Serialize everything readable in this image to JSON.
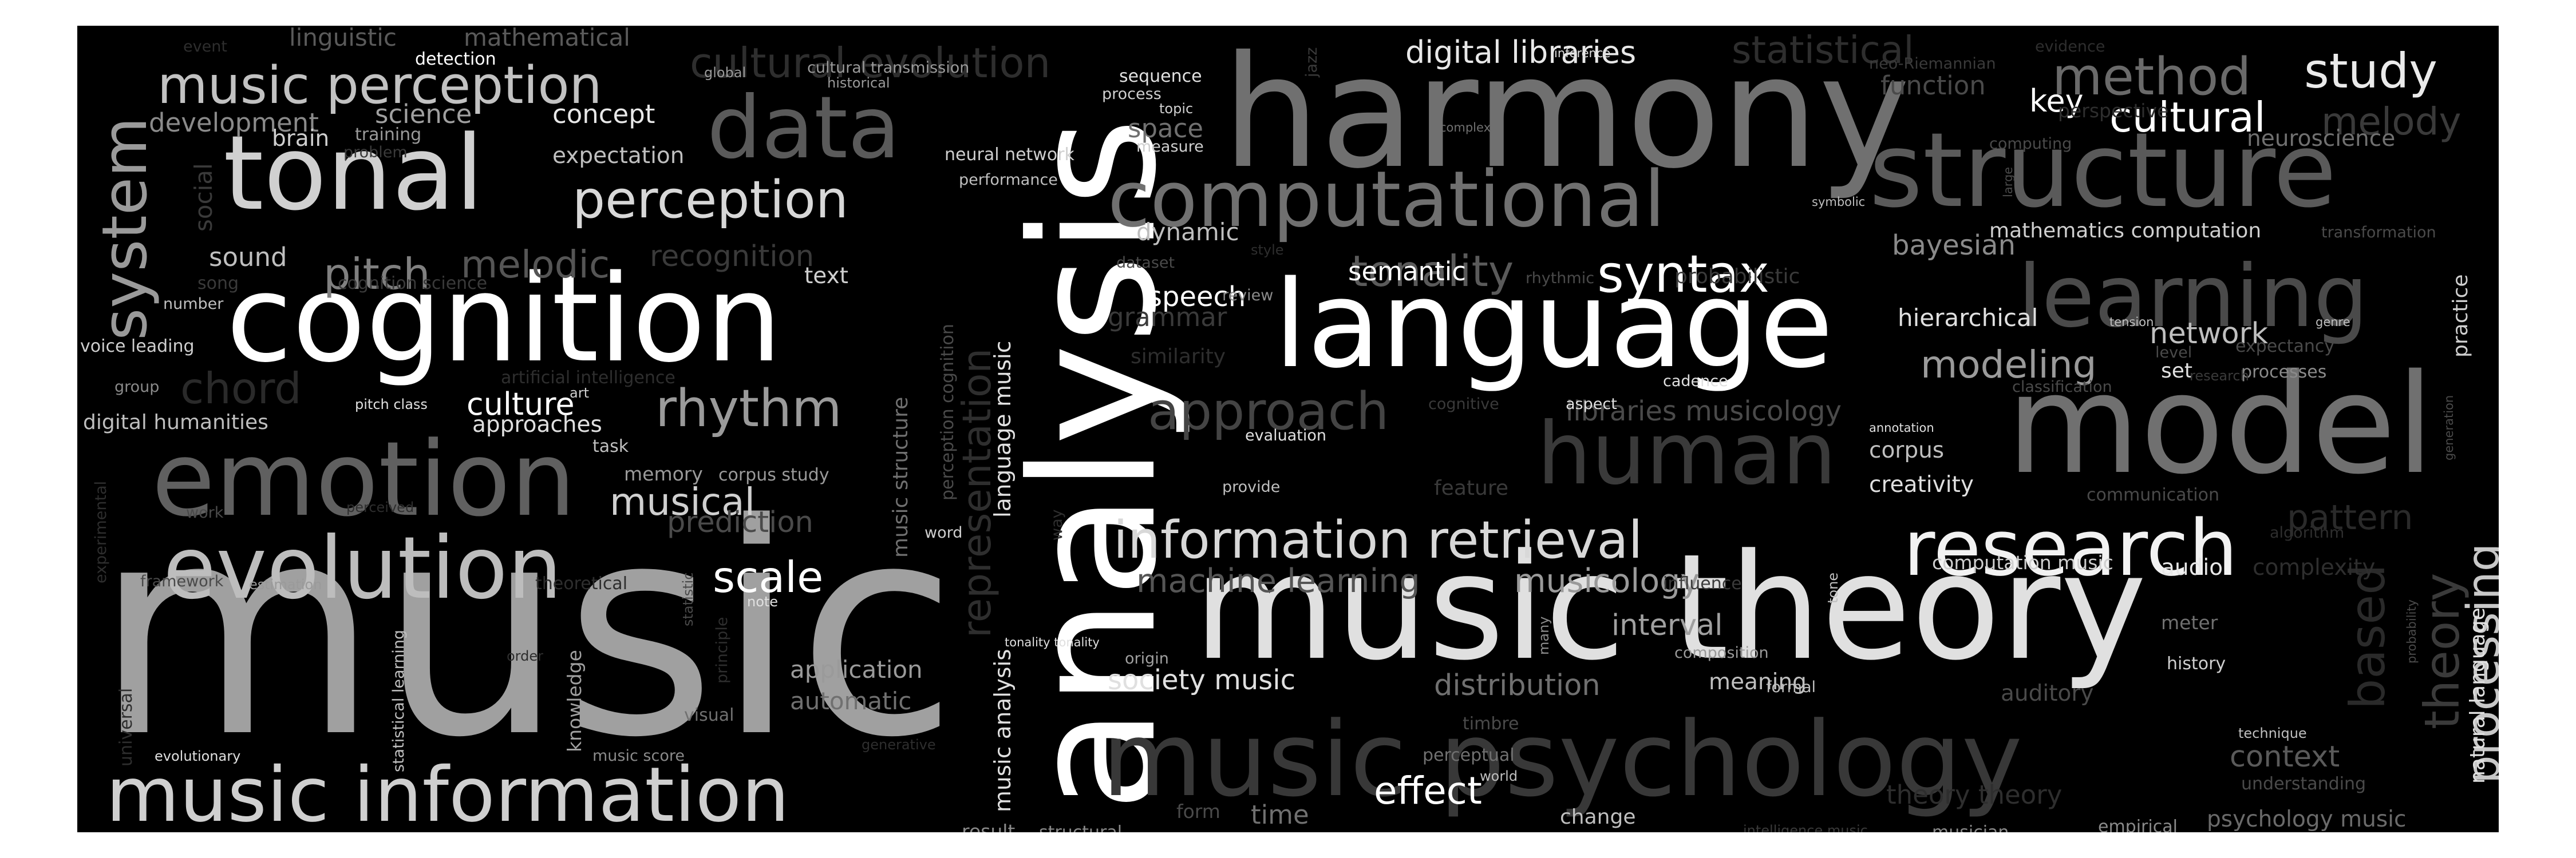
{
  "background": "#000000",
  "words": [
    {
      "text": "music",
      "color": "#a0a0a0"
    },
    {
      "text": "analysis",
      "color": "#ffffff"
    },
    {
      "text": "harmony",
      "color": "#707070"
    },
    {
      "text": "music theory",
      "color": "#e0e0e0"
    },
    {
      "text": "language",
      "color": "#ffffff"
    },
    {
      "text": "model",
      "color": "#707070"
    },
    {
      "text": "cognition",
      "color": "#ffffff"
    },
    {
      "text": "structure",
      "color": "#5a5a5a"
    },
    {
      "text": "music psychology",
      "color": "#383838"
    },
    {
      "text": "tonal",
      "color": "#d0d0d0"
    },
    {
      "text": "emotion",
      "color": "#606060"
    },
    {
      "text": "data",
      "color": "#5a5a5a"
    },
    {
      "text": "evolution",
      "color": "#bdbdbd"
    },
    {
      "text": "computational",
      "color": "#707070"
    },
    {
      "text": "learning",
      "color": "#4a4a4a"
    },
    {
      "text": "music information",
      "color": "#cfcfcf"
    },
    {
      "text": "human",
      "color": "#3a3a3a"
    },
    {
      "text": "research",
      "color": "#f2f2f2"
    },
    {
      "text": "system",
      "color": "#9a9a9a"
    },
    {
      "text": "information retrieval",
      "color": "#d8d8d8"
    },
    {
      "text": "music perception",
      "color": "#c2c2c2"
    },
    {
      "text": "perception",
      "color": "#d8d8d8"
    },
    {
      "text": "rhythm",
      "color": "#9a9a9a"
    },
    {
      "text": "approach",
      "color": "#444444"
    },
    {
      "text": "syntax",
      "color": "#ffffff"
    },
    {
      "text": "tonality",
      "color": "#5a5a5a"
    },
    {
      "text": "pitch",
      "color": "#808080"
    },
    {
      "text": "melodic",
      "color": "#555555"
    },
    {
      "text": "method",
      "color": "#6a6a6a"
    },
    {
      "text": "study",
      "color": "#eaeaea"
    },
    {
      "text": "cultural",
      "color": "#ffffff"
    },
    {
      "text": "melody",
      "color": "#3a3a3a"
    },
    {
      "text": "digital libraries",
      "color": "#e8e8e8"
    },
    {
      "text": "cultural evolution",
      "color": "#2e2e2e"
    },
    {
      "text": "statistical",
      "color": "#2e2e2e"
    },
    {
      "text": "scale",
      "color": "#ffffff"
    },
    {
      "text": "musical",
      "color": "#cfcfcf"
    },
    {
      "text": "machine learning",
      "color": "#555555"
    },
    {
      "text": "musicology",
      "color": "#9a9a9a"
    },
    {
      "text": "modeling",
      "color": "#9a9a9a"
    },
    {
      "text": "processing",
      "color": "#c8c8c8"
    },
    {
      "text": "theory",
      "color": "#3a3a3a"
    },
    {
      "text": "based",
      "color": "#2a2a2a"
    },
    {
      "text": "representation",
      "color": "#2e2e2e"
    },
    {
      "text": "chord",
      "color": "#2a2a2a"
    },
    {
      "text": "culture",
      "color": "#ffffff"
    },
    {
      "text": "effect",
      "color": "#ffffff"
    },
    {
      "text": "interval",
      "color": "#a0a0a0"
    },
    {
      "text": "distribution",
      "color": "#707070"
    },
    {
      "text": "bayesian",
      "color": "#8a8a8a"
    },
    {
      "text": "recognition",
      "color": "#3a3a3a"
    },
    {
      "text": "speech",
      "color": "#ffffff"
    },
    {
      "text": "network",
      "color": "#bfbfbf"
    },
    {
      "text": "pattern",
      "color": "#2a2a2a"
    },
    {
      "text": "context",
      "color": "#5a5a5a"
    },
    {
      "text": "libraries musicology",
      "color": "#4a4a4a"
    },
    {
      "text": "prediction",
      "color": "#4a4a4a"
    },
    {
      "text": "application",
      "color": "#9a9a9a"
    },
    {
      "text": "automatic",
      "color": "#707070"
    },
    {
      "text": "society music",
      "color": "#e0e0e0"
    },
    {
      "text": "space",
      "color": "#707070"
    },
    {
      "text": "grammar",
      "color": "#3a3a3a"
    },
    {
      "text": "sound",
      "color": "#bfbfbf"
    },
    {
      "text": "development",
      "color": "#8a8a8a"
    },
    {
      "text": "science",
      "color": "#a0a0a0"
    },
    {
      "text": "concept",
      "color": "#e8e8e8"
    },
    {
      "text": "expectation",
      "color": "#bfbfbf"
    },
    {
      "text": "time",
      "color": "#707070"
    },
    {
      "text": "key",
      "color": "#ffffff"
    },
    {
      "text": "semantic",
      "color": "#ffffff"
    },
    {
      "text": "dynamic",
      "color": "#bfbfbf"
    },
    {
      "text": "hierarchical",
      "color": "#e0e0e0"
    },
    {
      "text": "creativity",
      "color": "#e0e0e0"
    },
    {
      "text": "corpus",
      "color": "#bfbfbf"
    },
    {
      "text": "meaning",
      "color": "#bfbfbf"
    },
    {
      "text": "auditory",
      "color": "#4a4a4a"
    },
    {
      "text": "psychology music",
      "color": "#6a6a6a"
    },
    {
      "text": "music analysis",
      "color": "#e0e0e0"
    },
    {
      "text": "language music",
      "color": "#e0e0e0"
    },
    {
      "text": "music structure",
      "color": "#707070"
    },
    {
      "text": "perception cognition",
      "color": "#4a4a4a"
    },
    {
      "text": "mathematics computation",
      "color": "#cfcfcf"
    },
    {
      "text": "computation music",
      "color": "#cfcfcf"
    },
    {
      "text": "audio",
      "color": "#e8e8e8"
    },
    {
      "text": "complexity",
      "color": "#2e2e2e"
    },
    {
      "text": "meter",
      "color": "#707070"
    },
    {
      "text": "history",
      "color": "#cfcfcf"
    },
    {
      "text": "function",
      "color": "#4a4a4a"
    },
    {
      "text": "neuroscience",
      "color": "#707070"
    },
    {
      "text": "set",
      "color": "#e0e0e0"
    },
    {
      "text": "processes",
      "color": "#8a8a8a"
    },
    {
      "text": "expectancy",
      "color": "#4a4a4a"
    },
    {
      "text": "practice",
      "color": "#cfcfcf"
    },
    {
      "text": "natural language",
      "color": "#e0e0e0"
    },
    {
      "text": "linguistic",
      "color": "#5a5a5a"
    },
    {
      "text": "mathematical",
      "color": "#5a5a5a"
    },
    {
      "text": "detection",
      "color": "#ffffff"
    },
    {
      "text": "brain",
      "color": "#cfcfcf"
    },
    {
      "text": "training",
      "color": "#9a9a9a"
    },
    {
      "text": "problem",
      "color": "#3a3a3a"
    },
    {
      "text": "social",
      "color": "#3a3a3a"
    },
    {
      "text": "song",
      "color": "#3a3a3a"
    },
    {
      "text": "cognition science",
      "color": "#3a3a3a"
    },
    {
      "text": "number",
      "color": "#bfbfbf"
    },
    {
      "text": "voice leading",
      "color": "#cfcfcf"
    },
    {
      "text": "group",
      "color": "#8a8a8a"
    },
    {
      "text": "digital humanities",
      "color": "#bfbfbf"
    },
    {
      "text": "pitch class",
      "color": "#e0e0e0"
    },
    {
      "text": "approaches",
      "color": "#e0e0e0"
    },
    {
      "text": "art",
      "color": "#cfcfcf"
    },
    {
      "text": "artificial intelligence",
      "color": "#2e2e2e"
    },
    {
      "text": "task",
      "color": "#bfbfbf"
    },
    {
      "text": "memory",
      "color": "#9a9a9a"
    },
    {
      "text": "corpus study",
      "color": "#9a9a9a"
    },
    {
      "text": "experimental",
      "color": "#2e2e2e"
    },
    {
      "text": "work",
      "color": "#4a4a4a"
    },
    {
      "text": "perceived",
      "color": "#2e2e2e"
    },
    {
      "text": "framework",
      "color": "#4a4a4a"
    },
    {
      "text": "estimation",
      "color": "#9a9a9a"
    },
    {
      "text": "theoretical",
      "color": "#2e2e2e"
    },
    {
      "text": "statistical learning",
      "color": "#bfbfbf"
    },
    {
      "text": "statistic",
      "color": "#4a4a4a"
    },
    {
      "text": "principle",
      "color": "#2e2e2e"
    },
    {
      "text": "order",
      "color": "#2e2e2e"
    },
    {
      "text": "knowledge",
      "color": "#a0a0a0"
    },
    {
      "text": "universal",
      "color": "#2e2e2e"
    },
    {
      "text": "evolutionary",
      "color": "#e0e0e0"
    },
    {
      "text": "music score",
      "color": "#8a8a8a"
    },
    {
      "text": "visual",
      "color": "#707070"
    },
    {
      "text": "generative",
      "color": "#2e2e2e"
    },
    {
      "text": "note",
      "color": "#e0e0e0"
    },
    {
      "text": "word",
      "color": "#cfcfcf"
    },
    {
      "text": "text",
      "color": "#cfcfcf"
    },
    {
      "text": "global",
      "color": "#9a9a9a"
    },
    {
      "text": "cultural transmission",
      "color": "#9a9a9a"
    },
    {
      "text": "historical",
      "color": "#9a9a9a"
    },
    {
      "text": "sequence",
      "color": "#e0e0e0"
    },
    {
      "text": "process",
      "color": "#cfcfcf"
    },
    {
      "text": "topic",
      "color": "#cfcfcf"
    },
    {
      "text": "measure",
      "color": "#cfcfcf"
    },
    {
      "text": "neural network",
      "color": "#cfcfcf"
    },
    {
      "text": "performance",
      "color": "#bfbfbf"
    },
    {
      "text": "jazz",
      "color": "#3a3a3a"
    },
    {
      "text": "dataset",
      "color": "#4a4a4a"
    },
    {
      "text": "style",
      "color": "#2e2e2e"
    },
    {
      "text": "review",
      "color": "#8a8a8a"
    },
    {
      "text": "similarity",
      "color": "#2e2e2e"
    },
    {
      "text": "rhythmic",
      "color": "#4a4a4a"
    },
    {
      "text": "probabilistic",
      "color": "#3a3a3a"
    },
    {
      "text": "cognitive",
      "color": "#3a3a3a"
    },
    {
      "text": "aspect",
      "color": "#e0e0e0"
    },
    {
      "text": "cadence",
      "color": "#e0e0e0"
    },
    {
      "text": "evaluation",
      "color": "#e0e0e0"
    },
    {
      "text": "feature",
      "color": "#3a3a3a"
    },
    {
      "text": "provide",
      "color": "#bfbfbf"
    },
    {
      "text": "way",
      "color": "#2e2e2e"
    },
    {
      "text": "tonality tonality",
      "color": "#e0e0e0"
    },
    {
      "text": "origin",
      "color": "#a0a0a0"
    },
    {
      "text": "many",
      "color": "#8a8a8a"
    },
    {
      "text": "influence",
      "color": "#3a3a3a"
    },
    {
      "text": "tone",
      "color": "#bfbfbf"
    },
    {
      "text": "composition",
      "color": "#9a9a9a"
    },
    {
      "text": "formal",
      "color": "#bfbfbf"
    },
    {
      "text": "timbre",
      "color": "#4a4a4a"
    },
    {
      "text": "perceptual",
      "color": "#707070"
    },
    {
      "text": "world",
      "color": "#bfbfbf"
    },
    {
      "text": "form",
      "color": "#4a4a4a"
    },
    {
      "text": "change",
      "color": "#bfbfbf"
    },
    {
      "text": "result",
      "color": "#8a8a8a"
    },
    {
      "text": "structural",
      "color": "#8a8a8a"
    },
    {
      "text": "intelligence music",
      "color": "#3a3a3a"
    },
    {
      "text": "musician",
      "color": "#8a8a8a"
    },
    {
      "text": "empirical",
      "color": "#8a8a8a"
    },
    {
      "text": "technique",
      "color": "#bfbfbf"
    },
    {
      "text": "understanding",
      "color": "#4a4a4a"
    },
    {
      "text": "probability",
      "color": "#4a4a4a"
    },
    {
      "text": "event",
      "color": "#2e2e2e"
    },
    {
      "text": "inference",
      "color": "#e0e0e0"
    },
    {
      "text": "neo-Riemannian",
      "color": "#3a3a3a"
    },
    {
      "text": "evidence",
      "color": "#2e2e2e"
    },
    {
      "text": "perspective",
      "color": "#2e2e2e"
    },
    {
      "text": "computing",
      "color": "#4a4a4a"
    },
    {
      "text": "complex",
      "color": "#707070"
    },
    {
      "text": "symbolic",
      "color": "#bfbfbf"
    },
    {
      "text": "large",
      "color": "#4a4a4a"
    },
    {
      "text": "transformation",
      "color": "#4a4a4a"
    },
    {
      "text": "tension",
      "color": "#bfbfbf"
    },
    {
      "text": "genre",
      "color": "#bfbfbf"
    },
    {
      "text": "level",
      "color": "#4a4a4a"
    },
    {
      "text": "research",
      "color": "#3a3a3a"
    },
    {
      "text": "classification",
      "color": "#4a4a4a"
    },
    {
      "text": "generation",
      "color": "#4a4a4a"
    },
    {
      "text": "annotation",
      "color": "#e0e0e0"
    },
    {
      "text": "communication",
      "color": "#4a4a4a"
    },
    {
      "text": "algorithm",
      "color": "#2e2e2e"
    },
    {
      "text": "theory theory",
      "color": "#2e2e2e"
    }
  ]
}
